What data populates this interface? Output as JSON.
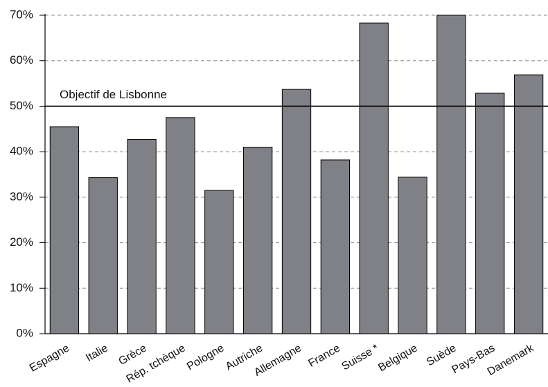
{
  "chart_data": {
    "type": "bar",
    "categories": [
      "Espagne",
      "Italie",
      "Grèce",
      "Rép. tchèque",
      "Pologne",
      "Autriche",
      "Allemagne",
      "France",
      "Suisse *",
      "Belgique",
      "Suède",
      "Pays-Bas",
      "Danemark"
    ],
    "values": [
      45.5,
      34.3,
      42.7,
      47.5,
      31.5,
      41,
      53.7,
      38.2,
      68.3,
      34.4,
      70,
      52.9,
      56.9
    ],
    "color": "#808186",
    "ylim": [
      0,
      70
    ],
    "yticks": [
      {
        "value": 0,
        "label": "0%"
      },
      {
        "value": 10,
        "label": "10%"
      },
      {
        "value": 20,
        "label": "20%"
      },
      {
        "value": 30,
        "label": "30%"
      },
      {
        "value": 40,
        "label": "40%"
      },
      {
        "value": 50,
        "label": "50%"
      },
      {
        "value": 60,
        "label": "60%"
      },
      {
        "value": 70,
        "label": "70%"
      }
    ],
    "grid": true,
    "reference_line": {
      "value": 50,
      "label": "Objectif de Lisbonne"
    }
  }
}
